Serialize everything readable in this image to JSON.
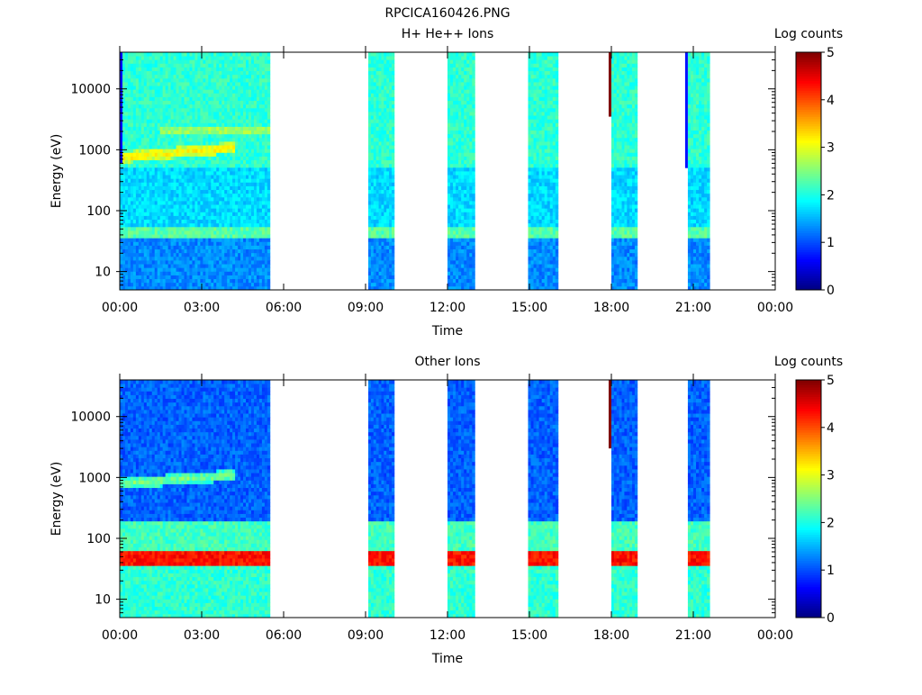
{
  "figure_title": "RPCICA160426.PNG",
  "colors": {
    "colormap": [
      "#00007f",
      "#0000ff",
      "#007fff",
      "#00ffff",
      "#7fff7f",
      "#ffff00",
      "#ff7f00",
      "#ff0000",
      "#7f0000"
    ],
    "background": "#ffffff",
    "text": "#000000"
  },
  "chart_data": [
    {
      "type": "heatmap",
      "title": "H+ He++ Ions",
      "xlabel": "Time",
      "ylabel": "Energy (eV)",
      "x_ticks": [
        "00:00",
        "03:00",
        "06:00",
        "09:00",
        "12:00",
        "15:00",
        "18:00",
        "21:00",
        "00:00"
      ],
      "x_range_hours": [
        0,
        24
      ],
      "y_scale": "log",
      "y_range": [
        5,
        40000
      ],
      "y_ticks": [
        {
          "label": "10",
          "value": 10
        },
        {
          "label": "100",
          "value": 100
        },
        {
          "label": "1000",
          "value": 1000
        },
        {
          "label": "10000",
          "value": 10000
        }
      ],
      "colorbar": {
        "label": "Log counts",
        "range": [
          0,
          5
        ],
        "ticks": [
          "0",
          "1",
          "2",
          "3",
          "4",
          "5"
        ]
      },
      "data_intervals_hours": [
        [
          0.0,
          5.5
        ],
        [
          9.1,
          10.05
        ],
        [
          12.0,
          13.0
        ],
        [
          14.95,
          16.05
        ],
        [
          18.0,
          18.95
        ],
        [
          20.8,
          21.6
        ]
      ],
      "bands": [
        {
          "e_min": 5,
          "e_max": 35,
          "level": 1.3
        },
        {
          "e_min": 35,
          "e_max": 55,
          "level": 2.3
        },
        {
          "e_min": 55,
          "e_max": 500,
          "level": 1.7
        },
        {
          "e_min": 500,
          "e_max": 40000,
          "level": 2.1
        }
      ],
      "features": [
        {
          "description": "ion beam",
          "t_start": 0.0,
          "t_end": 4.2,
          "energy_start": 750,
          "energy_end": 1100,
          "level": 3.2
        },
        {
          "description": "secondary beam",
          "t_start": 1.5,
          "t_end": 5.5,
          "energy_start": 2100,
          "energy_end": 2100,
          "level": 2.8
        }
      ],
      "spikes": [
        {
          "t": 0.05,
          "e_min": 600,
          "e_max": 40000,
          "level": 0.7
        },
        {
          "t": 17.95,
          "e_min": 3500,
          "e_max": 40000,
          "level": 5.0
        },
        {
          "t": 20.75,
          "e_min": 500,
          "e_max": 40000,
          "level": 0.7
        }
      ]
    },
    {
      "type": "heatmap",
      "title": "Other Ions",
      "xlabel": "Time",
      "ylabel": "Energy (eV)",
      "x_ticks": [
        "00:00",
        "03:00",
        "06:00",
        "09:00",
        "12:00",
        "15:00",
        "18:00",
        "21:00",
        "00:00"
      ],
      "x_range_hours": [
        0,
        24
      ],
      "y_scale": "log",
      "y_range": [
        5,
        40000
      ],
      "y_ticks": [
        {
          "label": "10",
          "value": 10
        },
        {
          "label": "100",
          "value": 100
        },
        {
          "label": "1000",
          "value": 1000
        },
        {
          "label": "10000",
          "value": 10000
        }
      ],
      "colorbar": {
        "label": "Log counts",
        "range": [
          0,
          5
        ],
        "ticks": [
          "0",
          "1",
          "2",
          "3",
          "4",
          "5"
        ]
      },
      "data_intervals_hours": [
        [
          0.0,
          5.5
        ],
        [
          9.1,
          10.05
        ],
        [
          12.0,
          13.0
        ],
        [
          14.95,
          16.05
        ],
        [
          18.0,
          18.95
        ],
        [
          20.8,
          21.6
        ]
      ],
      "bands": [
        {
          "e_min": 5,
          "e_max": 35,
          "level": 2.1
        },
        {
          "e_min": 35,
          "e_max": 60,
          "level": 4.3
        },
        {
          "e_min": 60,
          "e_max": 200,
          "level": 2.2
        },
        {
          "e_min": 200,
          "e_max": 40000,
          "level": 1.1
        }
      ],
      "features": [
        {
          "description": "ion beam",
          "t_start": 0.0,
          "t_end": 4.2,
          "energy_start": 800,
          "energy_end": 1100,
          "level": 2.5
        }
      ],
      "spikes": [
        {
          "t": 17.95,
          "e_min": 3000,
          "e_max": 40000,
          "level": 5.0
        }
      ]
    }
  ]
}
